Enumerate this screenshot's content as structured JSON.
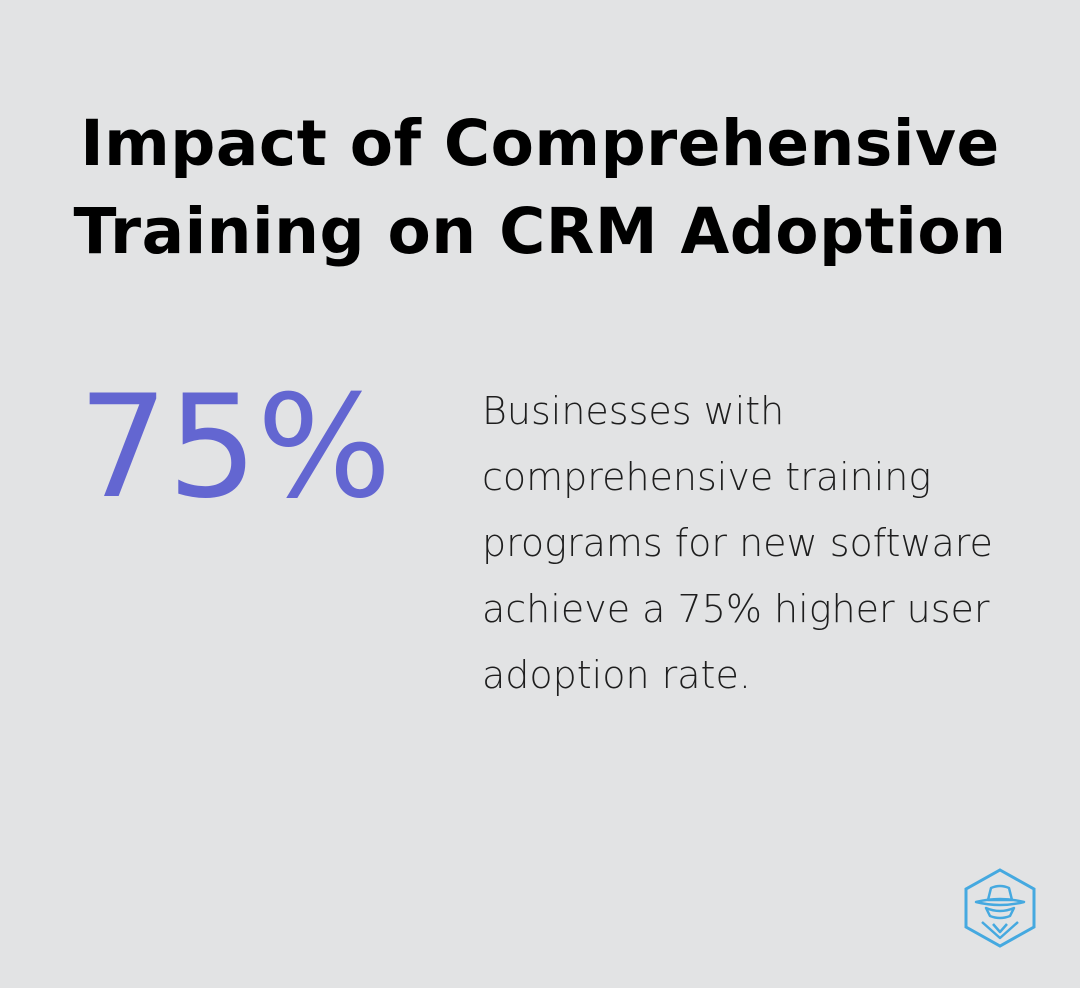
{
  "infographic": {
    "title": "Impact of Comprehensive Training on CRM Adoption",
    "stat_value": "75%",
    "description": "Businesses with comprehensive training programs for new software achieve a 75% higher user adoption rate.",
    "logo_icon": "spy-hat-hexagon-icon"
  },
  "colors": {
    "background": "#e2e3e4",
    "accent": "#6366d1",
    "logo": "#45a9e0"
  }
}
